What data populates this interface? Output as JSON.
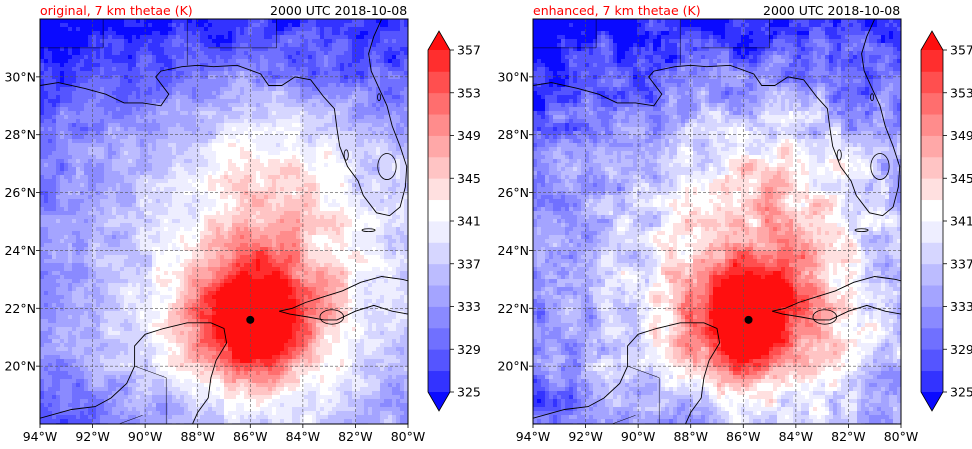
{
  "colors": {
    "title_accent": "#ff0000",
    "levels_fill": [
      "#0a0aff",
      "#3333ff",
      "#5555ff",
      "#7070ff",
      "#8a8aff",
      "#a4a4ff",
      "#bcbcff",
      "#d6d6ff",
      "#eeeeff",
      "#ffffff",
      "#ffe0e0",
      "#ffc4c4",
      "#ffa8a8",
      "#ff8c8c",
      "#ff6e6e",
      "#ff4f4f",
      "#ff2e2e",
      "#ff0f0f"
    ]
  },
  "chart_data": [
    {
      "type": "heatmap",
      "title_left": "original, 7 km thetae (K)",
      "title_right": "2000 UTC 2018-10-08",
      "xlabel": "",
      "ylabel": "",
      "x_ticks": [
        "94°W",
        "92°W",
        "90°W",
        "88°W",
        "86°W",
        "84°W",
        "82°W",
        "80°W"
      ],
      "y_ticks": [
        "20°N",
        "22°N",
        "24°N",
        "26°N",
        "28°N",
        "30°N"
      ],
      "xlim": [
        -94,
        -80
      ],
      "ylim": [
        18.0,
        32.0
      ],
      "grid": true,
      "marker": {
        "lon": -86.0,
        "lat": 21.6
      },
      "colorbar": {
        "ticks": [
          "325",
          "329",
          "333",
          "337",
          "341",
          "345",
          "349",
          "353",
          "357"
        ],
        "levels": [
          323,
          325,
          327,
          329,
          331,
          333,
          335,
          337,
          339,
          341,
          343,
          345,
          347,
          349,
          351,
          353,
          355,
          357,
          359
        ],
        "extend": "both"
      }
    },
    {
      "type": "heatmap",
      "title_left": "enhanced, 7 km thetae (K)",
      "title_right": "2000 UTC 2018-10-08",
      "xlabel": "",
      "ylabel": "",
      "x_ticks": [
        "94°W",
        "92°W",
        "90°W",
        "88°W",
        "86°W",
        "84°W",
        "82°W",
        "80°W"
      ],
      "y_ticks": [
        "20°N",
        "22°N",
        "24°N",
        "26°N",
        "28°N",
        "30°N"
      ],
      "xlim": [
        -94,
        -80
      ],
      "ylim": [
        18.0,
        32.0
      ],
      "grid": true,
      "marker": {
        "lon": -85.8,
        "lat": 21.6
      },
      "colorbar": {
        "ticks": [
          "325",
          "329",
          "333",
          "337",
          "341",
          "345",
          "349",
          "353",
          "357"
        ],
        "levels": [
          323,
          325,
          327,
          329,
          331,
          333,
          335,
          337,
          339,
          341,
          343,
          345,
          347,
          349,
          351,
          353,
          355,
          357,
          359
        ],
        "extend": "both"
      }
    }
  ]
}
